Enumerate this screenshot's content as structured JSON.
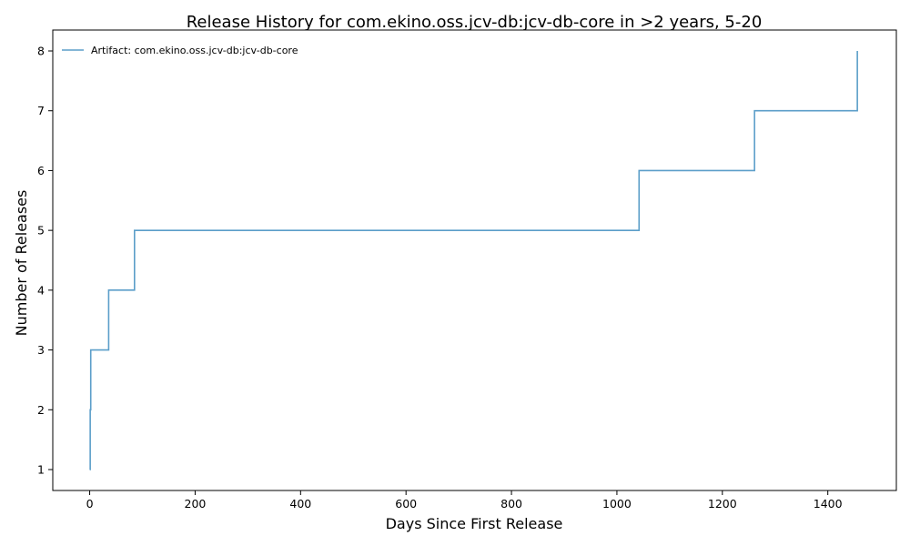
{
  "chart_data": {
    "type": "line",
    "drawstyle": "steps-post",
    "title": "Release History for com.ekino.oss.jcv-db:jcv-db-core in >2 years, 5-20",
    "xlabel": "Days Since First Release",
    "ylabel": "Number of Releases",
    "xlim": [
      -70,
      1530
    ],
    "ylim": [
      0.65,
      8.35
    ],
    "xticks": [
      0,
      200,
      400,
      600,
      800,
      1000,
      1200,
      1400
    ],
    "yticks": [
      1,
      2,
      3,
      4,
      5,
      6,
      7,
      8
    ],
    "grid": false,
    "legend_position": "upper-left",
    "series": [
      {
        "name": "Artifact: com.ekino.oss.jcv-db:jcv-db-core",
        "color": "#5b9ec9",
        "x": [
          0,
          1,
          2,
          36,
          85,
          1042,
          1261,
          1456
        ],
        "y": [
          1,
          2,
          3,
          4,
          5,
          6,
          7,
          8
        ]
      }
    ]
  }
}
